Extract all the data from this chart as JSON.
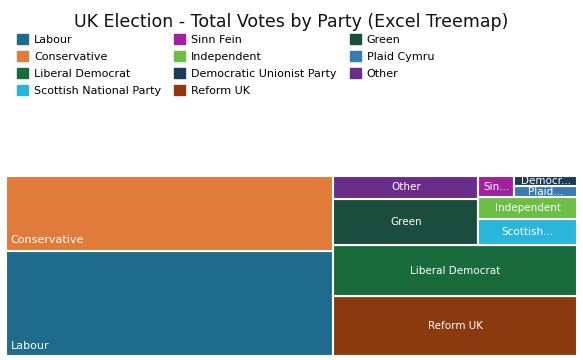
{
  "title": "UK Election - Total Votes by Party (Excel Treemap)",
  "parties": [
    {
      "name": "Labour",
      "votes": 9700000,
      "color": "#1f6b8e"
    },
    {
      "name": "Conservative",
      "votes": 6800000,
      "color": "#e07b39"
    },
    {
      "name": "Reform UK",
      "votes": 4100000,
      "color": "#8b3a10"
    },
    {
      "name": "Liberal Democrat",
      "votes": 3500000,
      "color": "#1a6b3c"
    },
    {
      "name": "Green",
      "votes": 1900000,
      "color": "#1b4d3e"
    },
    {
      "name": "Other",
      "votes": 900000,
      "color": "#6b2d8b"
    },
    {
      "name": "Scottish National Party",
      "votes": 724758,
      "color": "#29b6d8"
    },
    {
      "name": "Independent",
      "votes": 600000,
      "color": "#6cbf44"
    },
    {
      "name": "Sinn Fein",
      "votes": 210000,
      "color": "#a020a0"
    },
    {
      "name": "Plaid Cymru",
      "votes": 194811,
      "color": "#3a7ab5"
    },
    {
      "name": "Democratic Unionist Party",
      "votes": 172000,
      "color": "#1c3a5a"
    }
  ],
  "legend_order": [
    {
      "name": "Labour",
      "color": "#1f6b8e"
    },
    {
      "name": "Conservative",
      "color": "#e07b39"
    },
    {
      "name": "Liberal Democrat",
      "color": "#1a6b3c"
    },
    {
      "name": "Scottish National Party",
      "color": "#29b6d8"
    },
    {
      "name": "Sinn Fein",
      "color": "#a020a0"
    },
    {
      "name": "Independent",
      "color": "#6cbf44"
    },
    {
      "name": "Democratic Unionist Party",
      "color": "#1c3a5a"
    },
    {
      "name": "Reform UK",
      "color": "#8b3a10"
    },
    {
      "name": "Green",
      "color": "#1b4d3e"
    },
    {
      "name": "Plaid Cymru",
      "color": "#3a7ab5"
    },
    {
      "name": "Other",
      "color": "#6b2d8b"
    }
  ],
  "background_color": "#ffffff"
}
